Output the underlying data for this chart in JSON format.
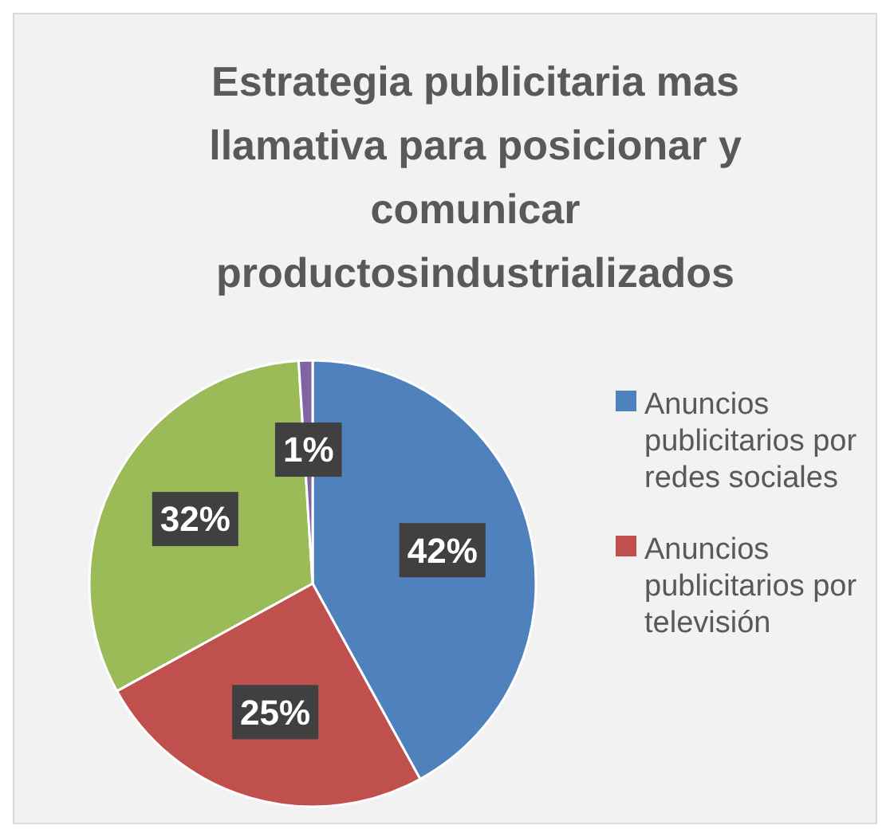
{
  "chart_data": {
    "type": "pie",
    "title": "Estrategia publicitaria mas llamativa para posicionar y comunicar productosindustrializados",
    "categories": [
      "Anuncios publicitarios por redes sociales",
      "Anuncios publicitarios por televisión",
      null,
      null
    ],
    "values": [
      42,
      25,
      32,
      1
    ],
    "colors": [
      "#4f81bd",
      "#c0504d",
      "#9bbb59",
      "#8064a2"
    ],
    "value_labels": [
      "42%",
      "25%",
      "32%",
      "1%"
    ],
    "legend": "right"
  }
}
